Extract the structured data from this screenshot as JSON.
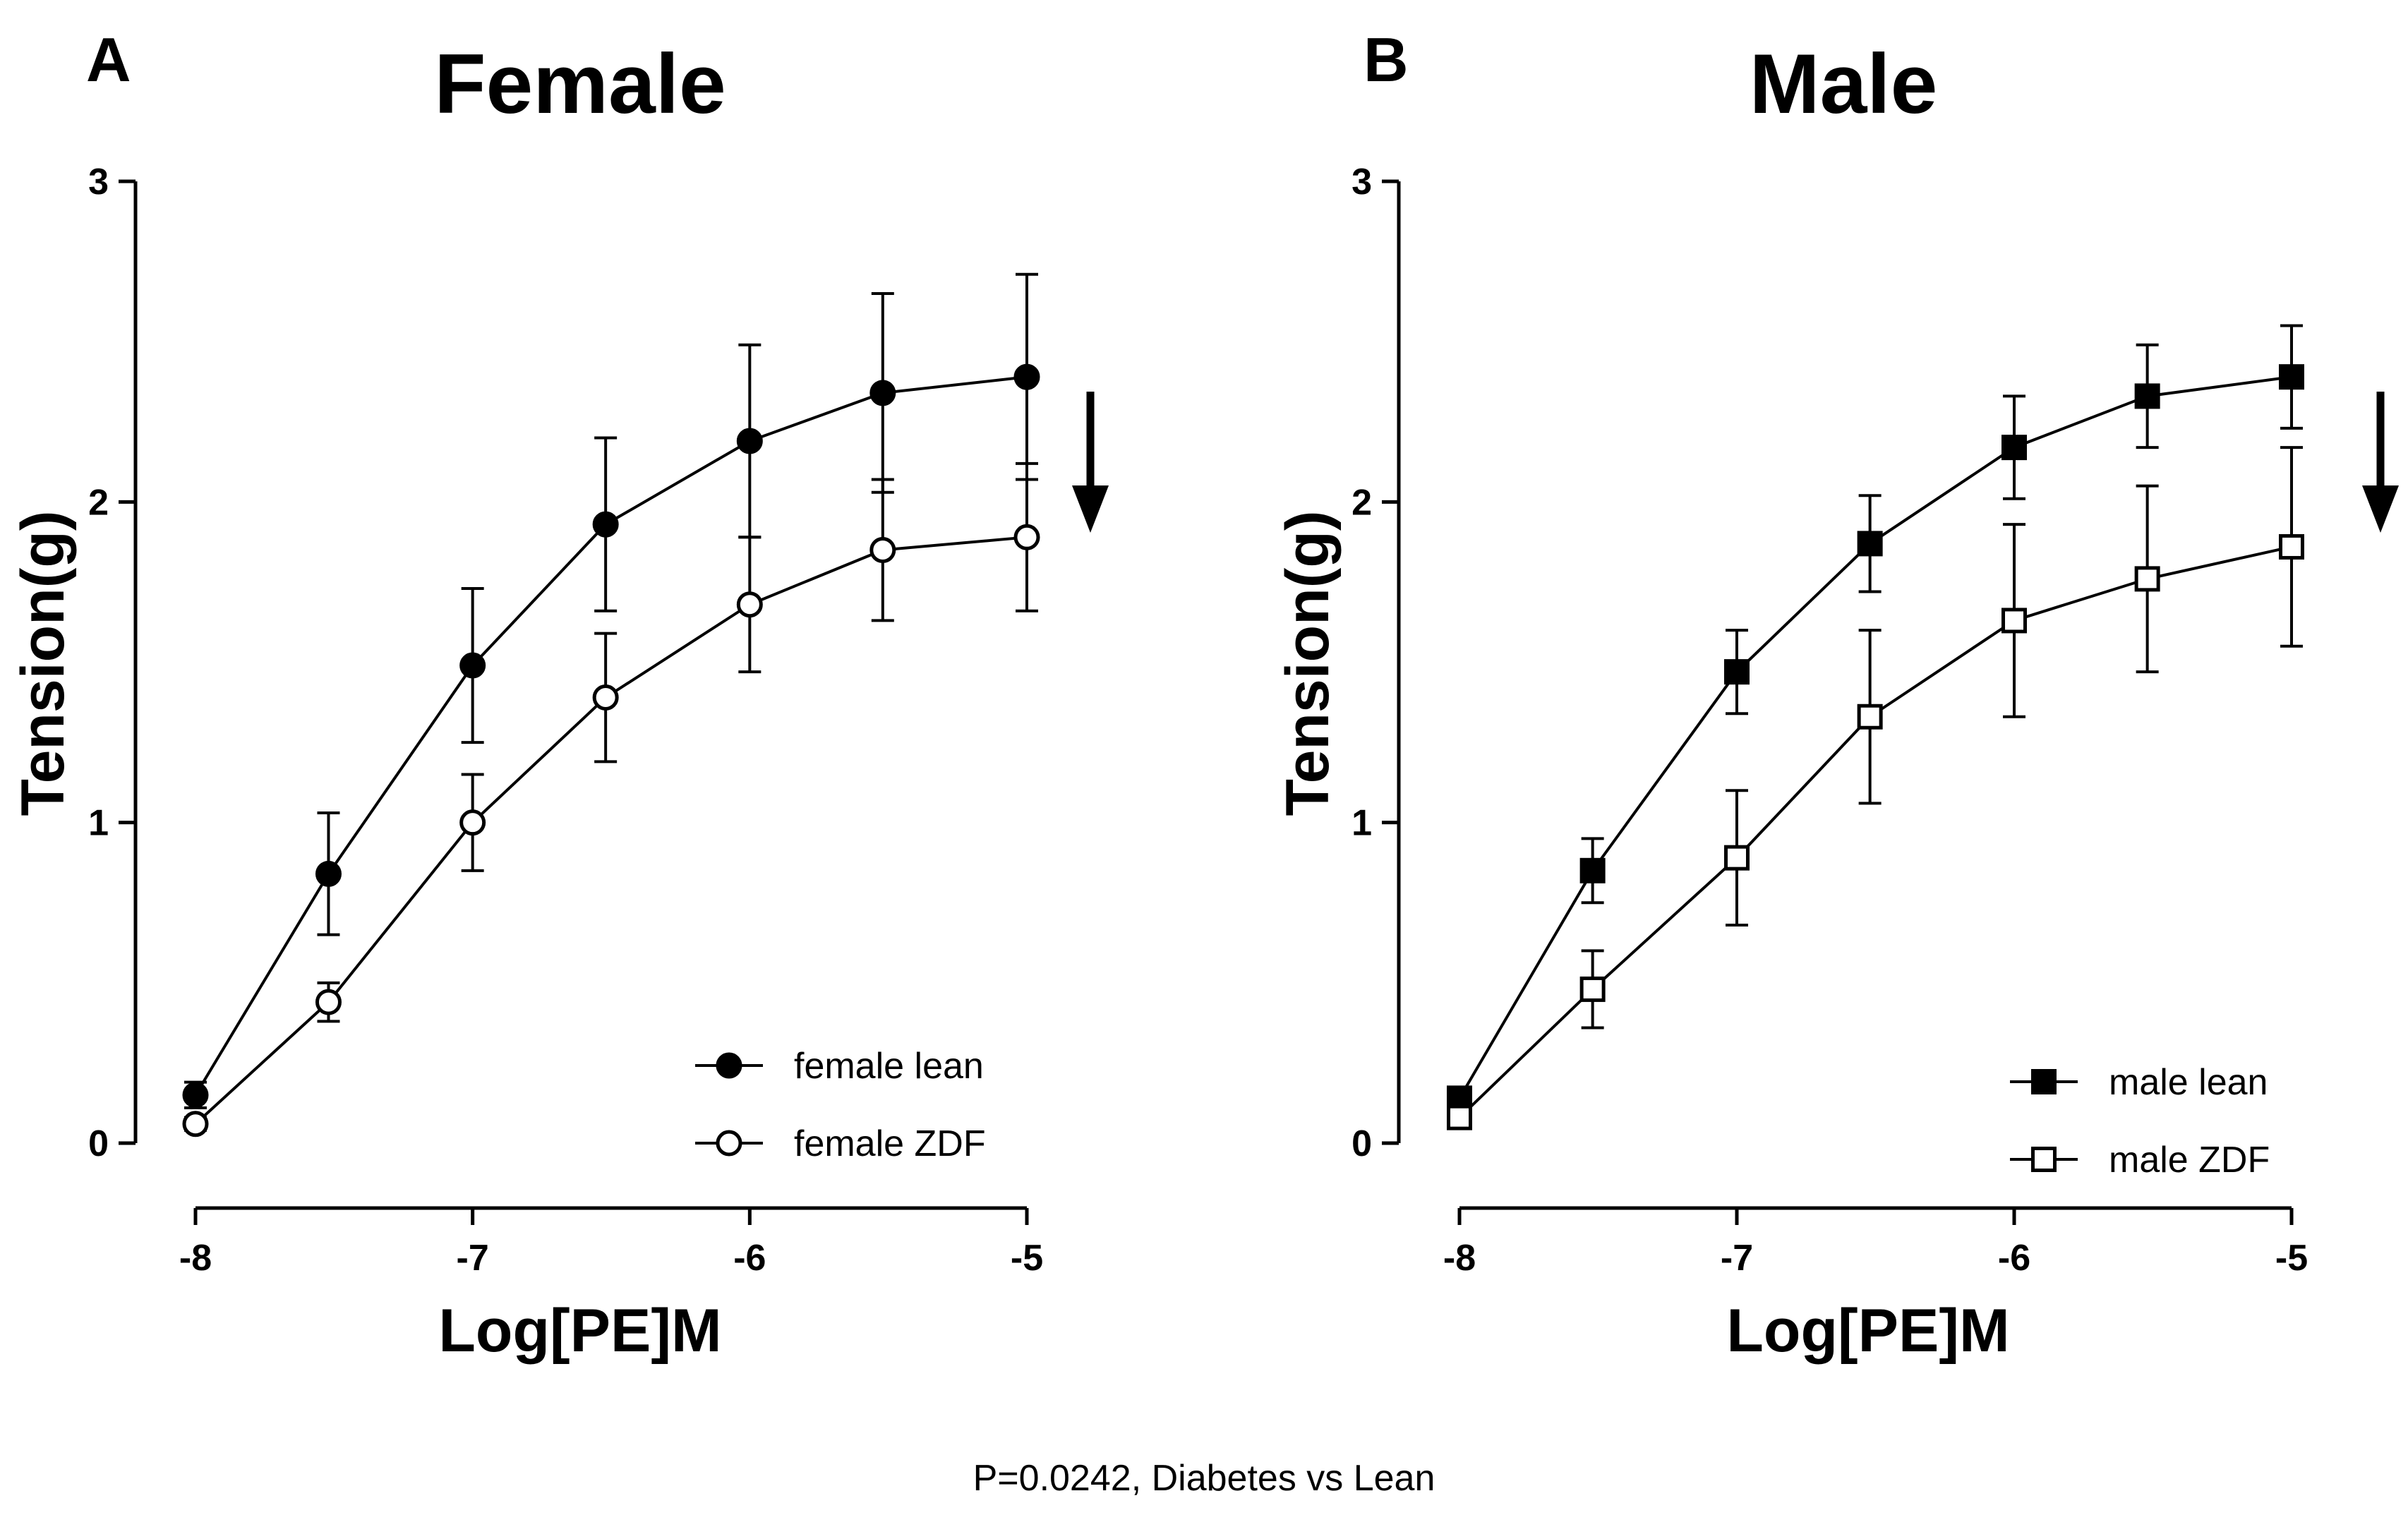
{
  "footnote": "P=0.0242, Diabetes vs Lean",
  "chart_data": [
    {
      "type": "line",
      "panel_label": "A",
      "title": "Female",
      "xlabel": "Log[PE]M",
      "ylabel": "Tension(g)",
      "xlim": [
        -8,
        -5
      ],
      "ylim": [
        0,
        3
      ],
      "x_ticks": [
        "-8",
        "-7",
        "-6",
        "-5"
      ],
      "y_ticks": [
        "0",
        "1",
        "2",
        "3"
      ],
      "grid": false,
      "legend_position": "bottom-right",
      "arrow": "down",
      "x": [
        -8,
        -7.52,
        -7,
        -6.52,
        -6,
        -5.52,
        -5
      ],
      "series": [
        {
          "name": "female lean",
          "marker": "filled-circle",
          "values": [
            0.15,
            0.84,
            1.49,
            1.93,
            2.19,
            2.34,
            2.39
          ],
          "error": [
            0.04,
            0.19,
            0.24,
            0.27,
            0.3,
            0.31,
            0.32
          ]
        },
        {
          "name": "female ZDF",
          "marker": "open-circle",
          "values": [
            0.06,
            0.44,
            1.0,
            1.39,
            1.68,
            1.85,
            1.89
          ],
          "error": [
            0.02,
            0.06,
            0.15,
            0.2,
            0.21,
            0.22,
            0.23
          ]
        }
      ]
    },
    {
      "type": "line",
      "panel_label": "B",
      "title": "Male",
      "xlabel": "Log[PE]M",
      "ylabel": "Tension(g)",
      "xlim": [
        -8,
        -5
      ],
      "ylim": [
        0,
        3
      ],
      "x_ticks": [
        "-8",
        "-7",
        "-6",
        "-5"
      ],
      "y_ticks": [
        "0",
        "1",
        "2",
        "3"
      ],
      "grid": false,
      "legend_position": "bottom-right",
      "arrow": "down",
      "x": [
        -8,
        -7.52,
        -7,
        -6.52,
        -6,
        -5.52,
        -5
      ],
      "series": [
        {
          "name": "male lean",
          "marker": "filled-square",
          "values": [
            0.14,
            0.85,
            1.47,
            1.87,
            2.17,
            2.33,
            2.39
          ],
          "error": [
            0.03,
            0.1,
            0.13,
            0.15,
            0.16,
            0.16,
            0.16
          ]
        },
        {
          "name": "male ZDF",
          "marker": "open-square",
          "values": [
            0.08,
            0.48,
            0.89,
            1.33,
            1.63,
            1.76,
            1.86
          ],
          "error": [
            0.02,
            0.12,
            0.21,
            0.27,
            0.3,
            0.29,
            0.31
          ]
        }
      ]
    }
  ]
}
